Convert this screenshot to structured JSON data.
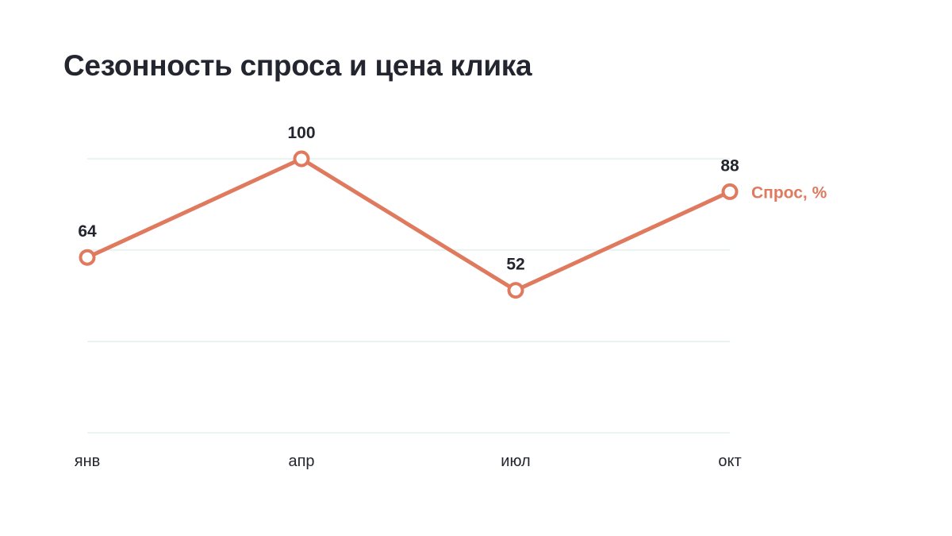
{
  "chart_data": {
    "type": "line",
    "title": "Сезонность спроса и цена клика",
    "categories": [
      "янв",
      "апр",
      "июл",
      "окт"
    ],
    "series": [
      {
        "name": "Спрос, %",
        "values": [
          64,
          100,
          52,
          88
        ],
        "color": "#e07a5f"
      }
    ],
    "ylim": [
      0,
      100
    ],
    "yticks": [
      0,
      33.3,
      66.7,
      100
    ],
    "grid": true,
    "data_labels": true,
    "legend": "inline-end"
  }
}
